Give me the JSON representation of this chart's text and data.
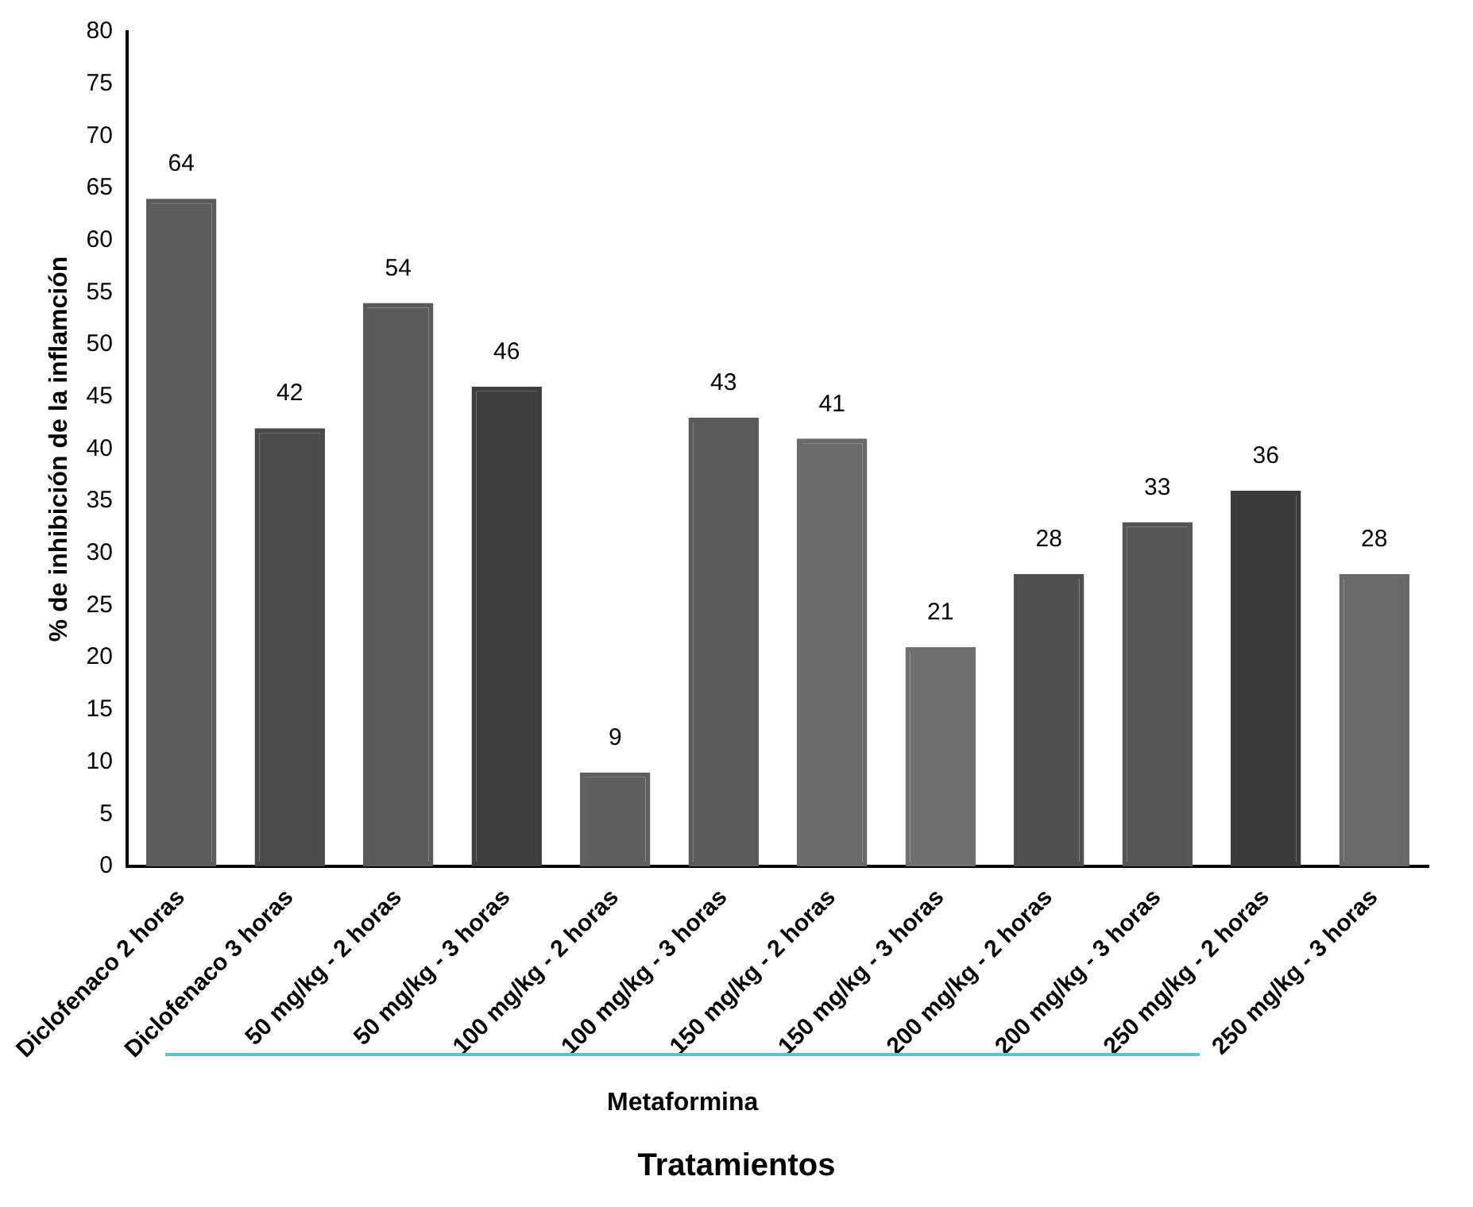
{
  "chart_data": {
    "type": "bar",
    "categories": [
      "Diclofenaco 2 horas",
      "Diclofenaco 3 horas",
      "50 mg/kg - 2 horas",
      "50 mg/kg - 3 horas",
      "100 mg/kg - 2 horas",
      "100 mg/kg - 3 horas",
      "150 mg/kg - 2 horas",
      "150 mg/kg - 3 horas",
      "200 mg/kg - 2 horas",
      "200 mg/kg - 3 horas",
      "250 mg/kg - 2 horas",
      "250 mg/kg - 3 horas"
    ],
    "values": [
      64,
      42,
      54,
      46,
      9,
      43,
      41,
      21,
      28,
      33,
      36,
      28
    ],
    "colors": [
      "#5c5c5c",
      "#4a4a4a",
      "#5a5a5a",
      "#3e3e3e",
      "#5f5f5f",
      "#5a5a5a",
      "#6a6a6a",
      "#707070",
      "#505050",
      "#555555",
      "#3a3a3a",
      "#696969"
    ],
    "ylabel": "% de inhibición de la inflamción",
    "xlabel": "Tratamientos",
    "annotations": [
      "Metaformina"
    ],
    "ylim": [
      0,
      80
    ],
    "yticks": [
      0,
      5,
      10,
      15,
      20,
      25,
      30,
      35,
      40,
      45,
      50,
      55,
      60,
      65,
      70,
      75,
      80
    ],
    "data_labels": true,
    "grid": false,
    "legend": false
  }
}
